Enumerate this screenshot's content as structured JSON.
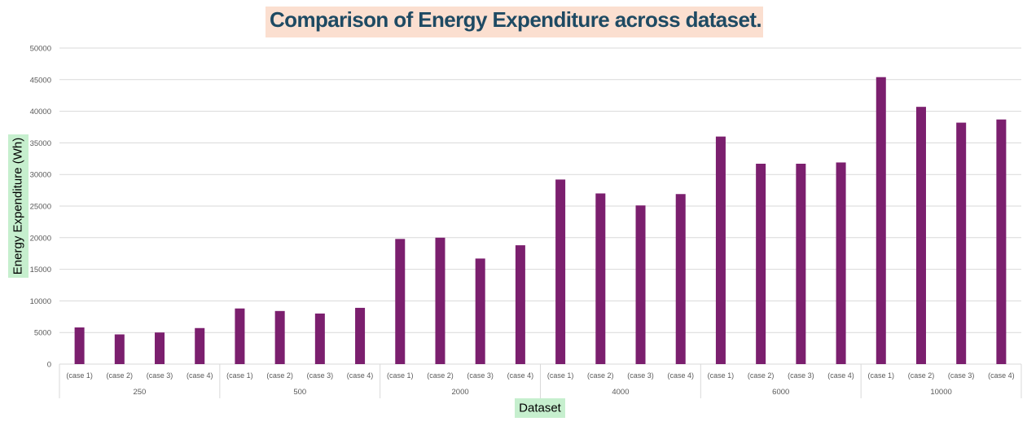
{
  "chart_data": {
    "type": "bar",
    "title": "Comparison of Energy Expenditure across dataset.",
    "xlabel": "Dataset",
    "ylabel": "Energy Expenditure (Wh)",
    "ylim": [
      0,
      50000
    ],
    "yticks": [
      0,
      5000,
      10000,
      15000,
      20000,
      25000,
      30000,
      35000,
      40000,
      45000,
      50000
    ],
    "grid": true,
    "legend": "none",
    "bar_color": "#7b1f6e",
    "groups": [
      {
        "label": "250",
        "cases": [
          "(case 1)",
          "(case 2)",
          "(case 3)",
          "(case 4)"
        ],
        "values": [
          5800,
          4700,
          5000,
          5700
        ]
      },
      {
        "label": "500",
        "cases": [
          "(case 1)",
          "(case 2)",
          "(case 3)",
          "(case 4)"
        ],
        "values": [
          8800,
          8400,
          8000,
          8900
        ]
      },
      {
        "label": "2000",
        "cases": [
          "(case 1)",
          "(case 2)",
          "(case 3)",
          "(case 4)"
        ],
        "values": [
          19800,
          20000,
          16700,
          18800
        ]
      },
      {
        "label": "4000",
        "cases": [
          "(case 1)",
          "(case 2)",
          "(case 3)",
          "(case 4)"
        ],
        "values": [
          29200,
          27000,
          25100,
          26900
        ]
      },
      {
        "label": "6000",
        "cases": [
          "(case 1)",
          "(case 2)",
          "(case 3)",
          "(case 4)"
        ],
        "values": [
          36000,
          31700,
          31700,
          31900
        ]
      },
      {
        "label": "10000",
        "cases": [
          "(case 1)",
          "(case 2)",
          "(case 3)",
          "(case 4)"
        ],
        "values": [
          45400,
          40700,
          38200,
          38700
        ]
      }
    ]
  }
}
